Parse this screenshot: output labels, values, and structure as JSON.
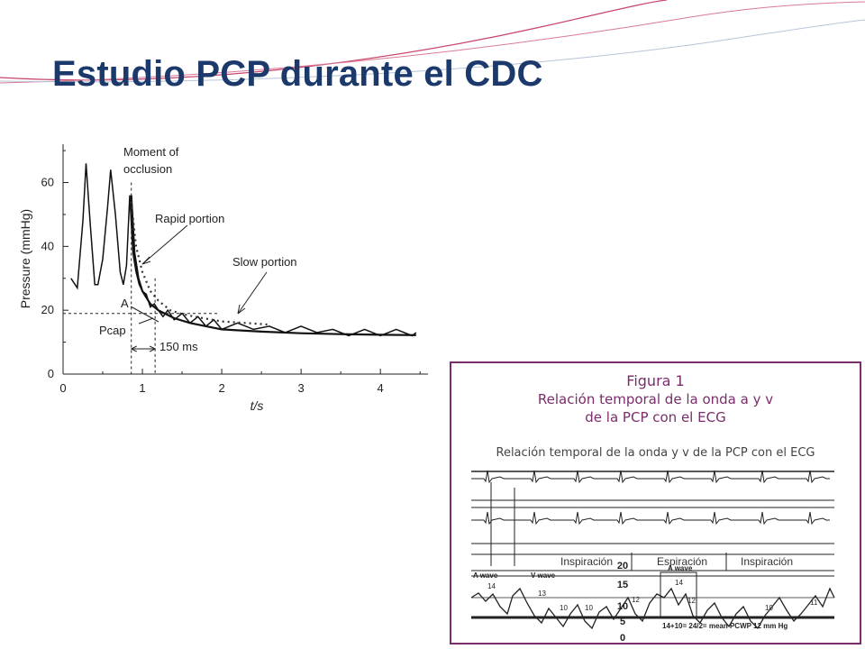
{
  "slide": {
    "title": "Estudio PCP durante el CDC",
    "accent_color": "#1b3a6b",
    "deco_color": "#c8456a"
  },
  "chart_data": [
    {
      "type": "line",
      "xlabel": "t/s",
      "ylabel": "Pressure (mmHg)",
      "xlim": [
        0,
        4.6
      ],
      "ylim": [
        0,
        72
      ],
      "x_ticks": [
        "0",
        "1",
        "2",
        "3",
        "4"
      ],
      "y_ticks": [
        "0",
        "20",
        "40",
        "60"
      ],
      "annotations": {
        "moment": "Moment of",
        "occlusion": "occlusion",
        "rapid": "Rapid portion",
        "slow": "Slow portion",
        "a_label": "A",
        "pcap": "Pcap",
        "duration": "150 ms"
      },
      "series": [
        {
          "values": [
            [
              0.1,
              30
            ],
            [
              0.18,
              27
            ],
            [
              0.25,
              48
            ],
            [
              0.29,
              66
            ],
            [
              0.34,
              48
            ],
            [
              0.4,
              28
            ],
            [
              0.44,
              28
            ],
            [
              0.5,
              36
            ],
            [
              0.56,
              52
            ],
            [
              0.6,
              64
            ],
            [
              0.66,
              50
            ],
            [
              0.72,
              32
            ],
            [
              0.76,
              28
            ],
            [
              0.8,
              34
            ],
            [
              0.84,
              56
            ],
            [
              0.88,
              38
            ],
            [
              0.92,
              32
            ],
            [
              0.96,
              28
            ],
            [
              1.0,
              26
            ],
            [
              1.05,
              25
            ],
            [
              1.1,
              21
            ],
            [
              1.15,
              22
            ],
            [
              1.2,
              20
            ],
            [
              1.26,
              18
            ],
            [
              1.32,
              20
            ],
            [
              1.4,
              17
            ],
            [
              1.5,
              19
            ],
            [
              1.6,
              16
            ],
            [
              1.7,
              18
            ],
            [
              1.8,
              15
            ],
            [
              1.9,
              17
            ],
            [
              2.0,
              14
            ],
            [
              2.2,
              16
            ],
            [
              2.4,
              14
            ],
            [
              2.6,
              15
            ],
            [
              2.8,
              13
            ],
            [
              3.0,
              15
            ],
            [
              3.2,
              13
            ],
            [
              3.4,
              14
            ],
            [
              3.6,
              12
            ],
            [
              3.8,
              14
            ],
            [
              4.0,
              12
            ],
            [
              4.2,
              14
            ],
            [
              4.4,
              12
            ],
            [
              4.45,
              13
            ]
          ]
        },
        {
          "values": [
            [
              0.86,
              56
            ],
            [
              0.9,
              38
            ],
            [
              0.95,
              30
            ],
            [
              1.0,
              26
            ],
            [
              1.1,
              22
            ],
            [
              1.2,
              20
            ],
            [
              1.4,
              17.5
            ],
            [
              1.6,
              16
            ],
            [
              1.8,
              15
            ],
            [
              2.0,
              14
            ],
            [
              2.5,
              13.3
            ],
            [
              3.0,
              12.8
            ],
            [
              3.5,
              12.5
            ],
            [
              4.0,
              12.3
            ],
            [
              4.45,
              12.2
            ]
          ]
        },
        {
          "values": [
            [
              0.86,
              54
            ],
            [
              0.92,
              40
            ],
            [
              1.0,
              32
            ],
            [
              1.1,
              26
            ],
            [
              1.2,
              23
            ],
            [
              1.35,
              20
            ],
            [
              1.5,
              18.8
            ],
            [
              1.7,
              17.8
            ],
            [
              2.0,
              16.5
            ],
            [
              2.3,
              16
            ],
            [
              2.6,
              15.5
            ]
          ]
        }
      ]
    },
    {
      "type": "line",
      "title": "Figura 1",
      "subtitle_line1": "Relación temporal de la onda a y v",
      "subtitle_line2": "de la PCP con el ECG",
      "inner_title": "Relación temporal de la onda y v de la PCP con el ECG",
      "phases": [
        "Inspiración",
        "Espiración",
        "Inspiración"
      ],
      "y_ticks": [
        "20",
        "15",
        "10",
        "5",
        "0"
      ],
      "wave_labels": {
        "a_wave_left": "A wave",
        "v_wave": "V wave",
        "a_wave_box": "A wave"
      },
      "wave_values": [
        "14",
        "13",
        "14",
        "12",
        "12",
        "10",
        "10",
        "10",
        "11"
      ],
      "footnote": "14+10= 24/2= mean PCWP 12 mm Hg"
    }
  ]
}
